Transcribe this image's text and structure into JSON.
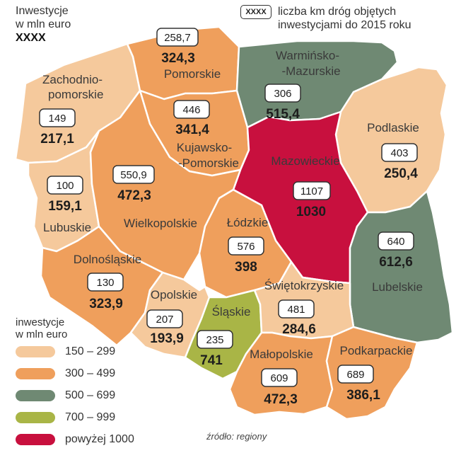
{
  "header": {
    "title_line1": "Inwestycje",
    "title_line2": "w mln euro",
    "title_marker": "XXXX",
    "key_marker": "XXXX",
    "key_line1": "liczba km dróg objętych",
    "key_line2": "inwestycjami do 2015 roku"
  },
  "colors": {
    "c150_299": "#f5c99c",
    "c300_499": "#ef9f5c",
    "c500_699": "#6f8973",
    "c700_999": "#a9b546",
    "c1000_plus": "#c8103e",
    "border": "#ffffff"
  },
  "regions": {
    "zachodniopomorskie": {
      "name_line1": "Zachodnio-",
      "name_line2": "pomorskie",
      "km": "149",
      "invest": "217,1"
    },
    "pomorskie": {
      "name": "Pomorskie",
      "km": "258,7",
      "invest": "324,3"
    },
    "warminsko_mazurskie": {
      "name_line1": "Warmińsko-",
      "name_line2": "-Mazurskie",
      "km": "306",
      "invest": "515,4"
    },
    "podlaskie": {
      "name": "Podlaskie",
      "km": "403",
      "invest": "250,4"
    },
    "kujawsko_pomorskie": {
      "name_line1": "Kujawsko-",
      "name_line2": "-Pomorskie",
      "km": "446",
      "invest": "341,4"
    },
    "mazowieckie": {
      "name": "Mazowieckie",
      "km": "1107",
      "invest": "1030"
    },
    "lubuskie": {
      "name": "Lubuskie",
      "km": "100",
      "invest": "159,1"
    },
    "wielkopolskie": {
      "name": "Wielkopolskie",
      "km": "550,9",
      "invest": "472,3"
    },
    "lodzkie": {
      "name": "Łódzkie",
      "km": "576",
      "invest": "398"
    },
    "lubelskie": {
      "name": "Lubelskie",
      "km": "640",
      "invest": "612,6"
    },
    "dolnoslaskie": {
      "name": "Dolnośląskie",
      "km": "130",
      "invest": "323,9"
    },
    "opolskie": {
      "name": "Opolskie",
      "km": "207",
      "invest": "193,9"
    },
    "slaskie": {
      "name": "Śląskie",
      "km": "235",
      "invest": "741"
    },
    "swietokrzyskie": {
      "name": "Świętokrzyskie",
      "km": "481",
      "invest": "284,6"
    },
    "malopolskie": {
      "name": "Małopolskie",
      "km": "609",
      "invest": "472,3"
    },
    "podkarpackie": {
      "name": "Podkarpackie",
      "km": "689",
      "invest": "386,1"
    }
  },
  "legend": {
    "title_line1": "inwestycje",
    "title_line2": "w mln euro",
    "items": [
      {
        "label": "150 – 299",
        "color": "#f5c99c"
      },
      {
        "label": "300 – 499",
        "color": "#ef9f5c"
      },
      {
        "label": "500 – 699",
        "color": "#6f8973"
      },
      {
        "label": "700 – 999",
        "color": "#a9b546"
      },
      {
        "label": "powyżej 1000",
        "color": "#c8103e"
      }
    ]
  },
  "source": "źródło: regiony"
}
